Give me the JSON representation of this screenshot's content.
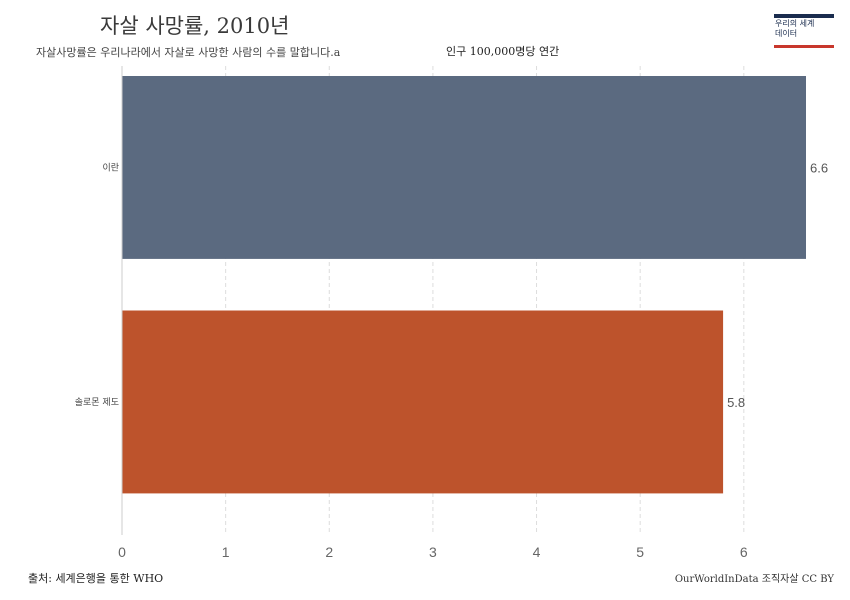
{
  "header": {
    "title": "자살 사망률, 2010년",
    "subtitle": "자살사망률은 우리나라에서 자살로 사망한 사람의 수를 말합니다.a",
    "unit": "인구 100,000명당 연간"
  },
  "logo": {
    "text": "우리의 세계 데이터"
  },
  "footer": {
    "source": "출처: 세계은행을 통한 WHO",
    "license": "OurWorldInData 조직자살 CC BY"
  },
  "chart_data": {
    "type": "bar",
    "orientation": "horizontal",
    "categories": [
      "이란",
      "솔로몬 제도"
    ],
    "values": [
      6.6,
      5.8
    ],
    "colors": [
      "#5b6a80",
      "#bd532c"
    ],
    "xlim": [
      0,
      6.6
    ],
    "xticks": [
      0,
      1,
      2,
      3,
      4,
      5,
      6
    ],
    "grid": "vertical dashed"
  }
}
